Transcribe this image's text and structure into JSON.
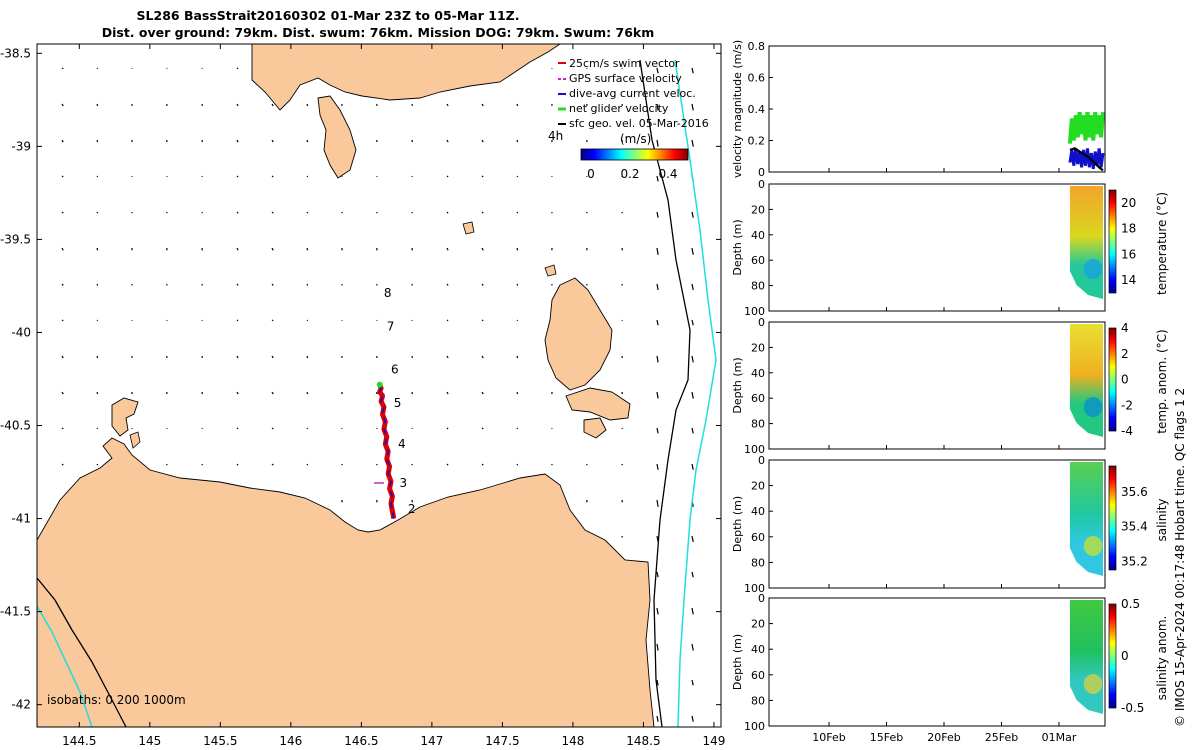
{
  "title_line1": "SL286 BassStrait20160302 01-Mar 23Z to 05-Mar 11Z.",
  "title_line2": "Dist. over ground: 79km. Dist. swum: 76km. Mission DOG: 79km. Swum: 76km",
  "credit": "© IMOS 15-Apr-2024 00:17:48 Hobart time. QC flags 1  2",
  "colors": {
    "land": "#f9c89b",
    "coast": "#000000",
    "isobath_200": "#000000",
    "isobath_1000": "#22dddd",
    "track_red": "#e00000",
    "track_blue": "#1010cc",
    "track_green": "#22dd22",
    "gps_magenta": "#cc22cc"
  },
  "chart_data": [
    {
      "type": "scatter",
      "panel": "map",
      "xlabel": "",
      "ylabel": "",
      "xlim": [
        144.2,
        149.05
      ],
      "ylim": [
        -42.12,
        -38.45
      ],
      "xticks": [
        "144.5",
        "145",
        "145.5",
        "146",
        "146.5",
        "147",
        "147.5",
        "148",
        "148.5",
        "149"
      ],
      "yticks": [
        "-38.5",
        "-39",
        "-39.5",
        "-40",
        "-40.5",
        "-41",
        "-41.5",
        "-42"
      ],
      "legend": {
        "placement": "top-right",
        "entries": [
          "25cm/s swim vector",
          "GPS surface velocity",
          "dive-avg current veloc.",
          "net glider velocity",
          "sfc geo. vel. 05-Mar-2016"
        ],
        "time_label": "4h",
        "colorbar_label": "(m/s)",
        "colorbar_ticks": [
          "0",
          "0.2",
          "0.4"
        ]
      },
      "isobath_label": "isobaths: 0   200  1000m",
      "day_markers": [
        {
          "label": "2",
          "lon": 146.83,
          "lat": -40.97
        },
        {
          "label": "3",
          "lon": 146.77,
          "lat": -40.83
        },
        {
          "label": "4",
          "lon": 146.76,
          "lat": -40.62
        },
        {
          "label": "5",
          "lon": 146.73,
          "lat": -40.4
        },
        {
          "label": "6",
          "lon": 146.71,
          "lat": -40.22
        },
        {
          "label": "7",
          "lon": 146.68,
          "lat": -39.99
        },
        {
          "label": "8",
          "lon": 146.66,
          "lat": -39.81
        }
      ],
      "track": {
        "lon": [
          146.73,
          146.72,
          146.71,
          146.72,
          146.7,
          146.71,
          146.69,
          146.7,
          146.68,
          146.69,
          146.67,
          146.68,
          146.66,
          146.67,
          146.65,
          146.66,
          146.64,
          146.65,
          146.63,
          146.64,
          146.63
        ],
        "lat": [
          -41.0,
          -40.96,
          -40.92,
          -40.88,
          -40.84,
          -40.8,
          -40.76,
          -40.72,
          -40.68,
          -40.64,
          -40.6,
          -40.56,
          -40.52,
          -40.48,
          -40.44,
          -40.4,
          -40.37,
          -40.34,
          -40.32,
          -40.3,
          -40.28
        ]
      }
    },
    {
      "type": "line",
      "panel": "velocity",
      "ylabel": "velocity magnitude (m/s)",
      "ylim": [
        0,
        0.8
      ],
      "yticks": [
        "0",
        "0.2",
        "0.4",
        "0.6",
        "0.8"
      ],
      "series": [
        {
          "color": "#22dd22",
          "day": [
            2.0,
            2.2,
            2.4,
            2.6,
            2.8,
            3.0,
            3.2,
            3.4,
            3.6,
            3.8,
            4.0,
            4.2,
            4.4,
            4.6,
            4.8,
            5.0,
            5.2,
            5.4
          ],
          "values": [
            0.18,
            0.34,
            0.2,
            0.36,
            0.22,
            0.38,
            0.24,
            0.36,
            0.2,
            0.38,
            0.22,
            0.36,
            0.2,
            0.38,
            0.24,
            0.36,
            0.22,
            0.38
          ]
        },
        {
          "color": "#1010cc",
          "day": [
            2.0,
            2.2,
            2.4,
            2.6,
            2.8,
            3.0,
            3.2,
            3.4,
            3.6,
            3.8,
            4.0,
            4.2,
            4.4,
            4.6,
            4.8,
            5.0,
            5.2,
            5.4
          ],
          "values": [
            0.06,
            0.14,
            0.04,
            0.15,
            0.05,
            0.13,
            0.03,
            0.14,
            0.04,
            0.15,
            0.03,
            0.12,
            0.02,
            0.13,
            0.04,
            0.15,
            0.03,
            0.12
          ]
        },
        {
          "color": "#000000",
          "day": [
            2.0,
            2.5,
            3.0,
            3.5,
            4.0,
            4.5,
            5.0,
            5.4
          ],
          "values": [
            0.14,
            0.15,
            0.13,
            0.11,
            0.09,
            0.06,
            0.03,
            0.01
          ]
        }
      ]
    },
    {
      "type": "heatmap",
      "panel": "temperature",
      "ylabel": "Depth (m)",
      "yticks": [
        "0",
        "20",
        "40",
        "60",
        "80",
        "100"
      ],
      "colorbar_label": "temperature (°C)",
      "colorbar_ticks": [
        "14",
        "16",
        "18",
        "20"
      ],
      "clim": [
        13,
        21
      ]
    },
    {
      "type": "heatmap",
      "panel": "temperature_anomaly",
      "ylabel": "Depth (m)",
      "yticks": [
        "0",
        "20",
        "40",
        "60",
        "80",
        "100"
      ],
      "colorbar_label": "temp. anom. (°C)",
      "colorbar_ticks": [
        "-4",
        "-2",
        "0",
        "2",
        "4"
      ],
      "clim": [
        -4,
        4
      ]
    },
    {
      "type": "heatmap",
      "panel": "salinity",
      "ylabel": "Depth (m)",
      "yticks": [
        "0",
        "20",
        "40",
        "60",
        "80",
        "100"
      ],
      "colorbar_label": "salinity",
      "colorbar_ticks": [
        "35.2",
        "35.4",
        "35.6"
      ],
      "clim": [
        35.15,
        35.75
      ]
    },
    {
      "type": "heatmap",
      "panel": "salinity_anomaly",
      "ylabel": "Depth (m)",
      "yticks": [
        "0",
        "20",
        "40",
        "60",
        "80",
        "100"
      ],
      "xticks": [
        "10Feb",
        "15Feb",
        "20Feb",
        "25Feb",
        "01Mar"
      ],
      "colorbar_label": "salinity anom.",
      "colorbar_ticks": [
        "-0.5",
        "0",
        "0.5"
      ],
      "clim": [
        -0.5,
        0.5
      ]
    }
  ]
}
